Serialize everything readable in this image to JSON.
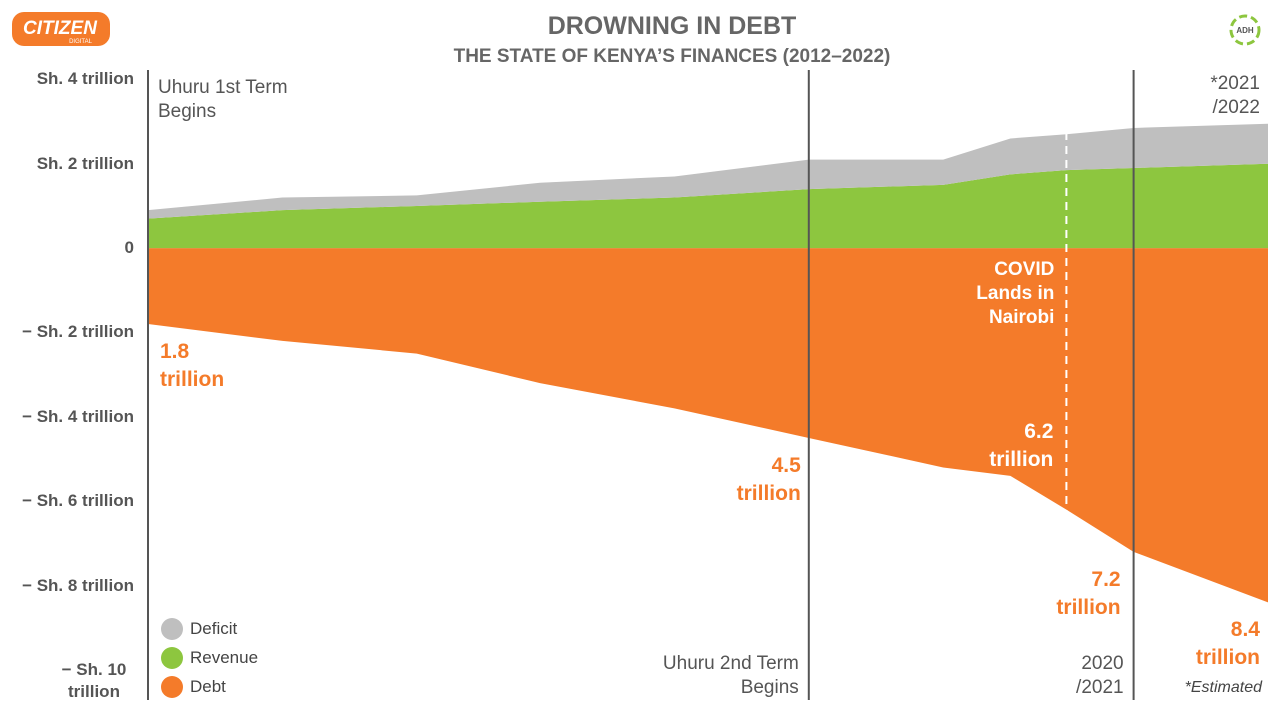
{
  "logos": {
    "left": "CITIZEN",
    "left_sub": "DIGITAL",
    "right": "ADH"
  },
  "chart_data": {
    "type": "area",
    "title": "DROWNING IN DEBT",
    "subtitle": "THE STATE OF KENYA’S FINANCES (2012–2022)",
    "x": [
      2012,
      2013.2,
      2014.4,
      2015.5,
      2016.7,
      2017.9,
      2019.1,
      2019.7,
      2020.2,
      2020.8,
      2022
    ],
    "xlim": [
      2012,
      2022
    ],
    "ylim": [
      -10.5,
      4.2
    ],
    "yticks": [
      {
        "value": 4,
        "label": "Sh. 4 trillion"
      },
      {
        "value": 2,
        "label": "Sh. 2 trillion"
      },
      0,
      {
        "value": -2,
        "label": "− Sh. 2 trillion"
      },
      {
        "value": -4,
        "label": "− Sh. 4 trillion"
      },
      {
        "value": -6,
        "label": "− Sh. 6 trillion"
      },
      {
        "value": -8,
        "label": "− Sh. 8 trillion"
      },
      {
        "value": -10,
        "label": "− Sh. 10 trillion"
      }
    ],
    "stacked": true,
    "series": [
      {
        "name": "Deficit",
        "color": "#bfbfbf",
        "values": [
          0.2,
          0.3,
          0.25,
          0.45,
          0.5,
          0.7,
          0.6,
          0.85,
          0.85,
          0.95,
          0.95
        ]
      },
      {
        "name": "Revenue",
        "color": "#8dc63f",
        "values": [
          0.7,
          0.9,
          1.0,
          1.1,
          1.2,
          1.4,
          1.5,
          1.75,
          1.85,
          1.9,
          2.0
        ]
      },
      {
        "name": "Debt",
        "color": "#f47b2a",
        "values": [
          -1.8,
          -2.2,
          -2.5,
          -3.2,
          -3.8,
          -4.5,
          -5.2,
          -5.4,
          -6.2,
          -7.2,
          -8.4
        ],
        "value_labels": [
          "1.8 trillion",
          null,
          null,
          null,
          null,
          "4.5 trillion",
          null,
          null,
          "6.2 trillion",
          "7.2 trillion",
          "8.4 trillion"
        ]
      }
    ],
    "annotations": [
      {
        "x": 2012,
        "text": "Uhuru 1st Term Begins",
        "line": "solid"
      },
      {
        "x": 2017.9,
        "text": "Uhuru 2nd Term Begins",
        "line": "solid"
      },
      {
        "x": 2020.2,
        "text": "COVID Lands in Nairobi",
        "line": "dashed"
      },
      {
        "x": 2020.8,
        "text": "2020 /2021",
        "line": "solid"
      },
      {
        "x": 2022,
        "text": "*2021 /2022"
      }
    ],
    "footnote": "*Estimated",
    "legend": "lower left"
  }
}
